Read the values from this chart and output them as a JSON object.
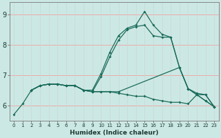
{
  "xlabel": "Humidex (Indice chaleur)",
  "xlim": [
    -0.5,
    23.5
  ],
  "ylim": [
    5.5,
    9.4
  ],
  "xticks": [
    0,
    1,
    2,
    3,
    4,
    5,
    6,
    7,
    8,
    9,
    10,
    11,
    12,
    13,
    14,
    15,
    16,
    17,
    18,
    19,
    20,
    21,
    22,
    23
  ],
  "yticks": [
    6,
    7,
    8,
    9
  ],
  "background_color": "#cce8e4",
  "grid_color_h": "#f0a0a0",
  "grid_color_v": "#c8d8d4",
  "line_color": "#1a6b5a",
  "lines": [
    {
      "x": [
        0,
        1,
        2,
        3,
        4,
        5,
        6,
        7,
        8,
        9,
        10,
        11,
        12,
        13,
        14,
        15,
        16,
        17,
        18,
        19,
        20,
        21,
        22,
        23
      ],
      "y": [
        5.7,
        6.05,
        6.5,
        6.65,
        6.7,
        6.7,
        6.65,
        6.65,
        6.5,
        6.5,
        7.05,
        7.75,
        8.3,
        8.55,
        8.65,
        9.1,
        8.65,
        8.35,
        8.25,
        7.25,
        6.55,
        6.4,
        6.35,
        5.95
      ]
    },
    {
      "x": [
        2,
        3,
        4,
        5,
        6,
        7,
        8,
        9,
        10,
        11,
        12,
        13,
        14,
        15,
        16,
        17,
        18,
        19,
        20,
        21,
        22,
        23
      ],
      "y": [
        6.5,
        6.65,
        6.7,
        6.7,
        6.65,
        6.65,
        6.5,
        6.45,
        6.95,
        7.6,
        8.15,
        8.5,
        8.6,
        8.65,
        8.3,
        8.25,
        8.25,
        7.25,
        6.55,
        6.35,
        6.15,
        5.95
      ]
    },
    {
      "x": [
        2,
        3,
        4,
        5,
        6,
        7,
        8,
        9,
        10,
        11,
        12,
        13,
        14,
        15,
        16,
        17,
        18,
        19,
        20,
        21,
        22,
        23
      ],
      "y": [
        6.5,
        6.65,
        6.7,
        6.7,
        6.65,
        6.65,
        6.5,
        6.45,
        6.45,
        6.45,
        6.4,
        6.35,
        6.3,
        6.3,
        6.2,
        6.15,
        6.1,
        6.1,
        6.05,
        6.35,
        6.35,
        5.95
      ]
    },
    {
      "x": [
        2,
        3,
        4,
        5,
        6,
        7,
        8,
        9,
        10,
        11,
        12,
        19,
        20,
        21,
        22,
        23
      ],
      "y": [
        6.5,
        6.65,
        6.7,
        6.7,
        6.65,
        6.65,
        6.5,
        6.45,
        6.45,
        6.45,
        6.45,
        7.25,
        6.55,
        6.35,
        6.15,
        5.95
      ]
    }
  ]
}
